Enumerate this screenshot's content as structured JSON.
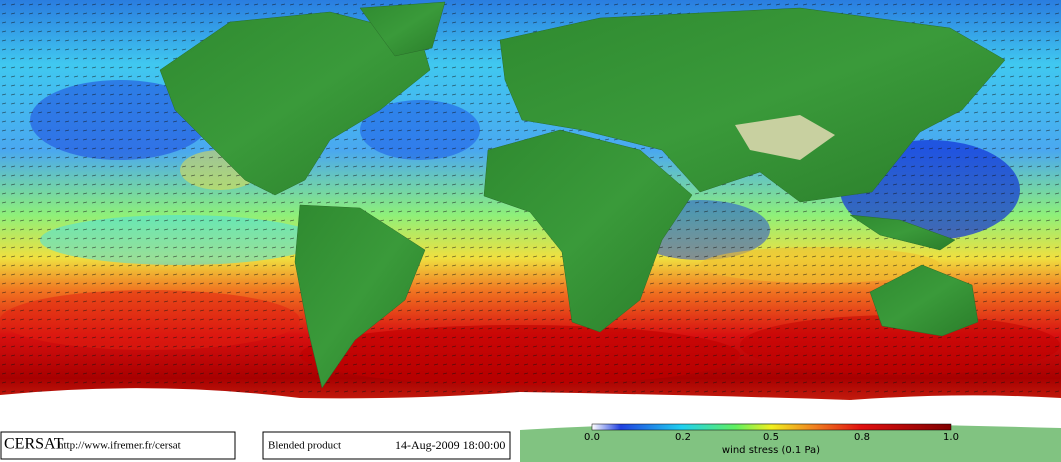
{
  "footer": {
    "logo": "CERSAT",
    "url": "http://www.ifremer.fr/cersat",
    "product": "Blended product",
    "timestamp": "14-Aug-2009 18:00:00"
  },
  "colorbar": {
    "ticks": [
      "0.0",
      "0.2",
      "0.5",
      "0.8",
      "1.0"
    ],
    "label": "wind stress (0.1 Pa)"
  }
}
